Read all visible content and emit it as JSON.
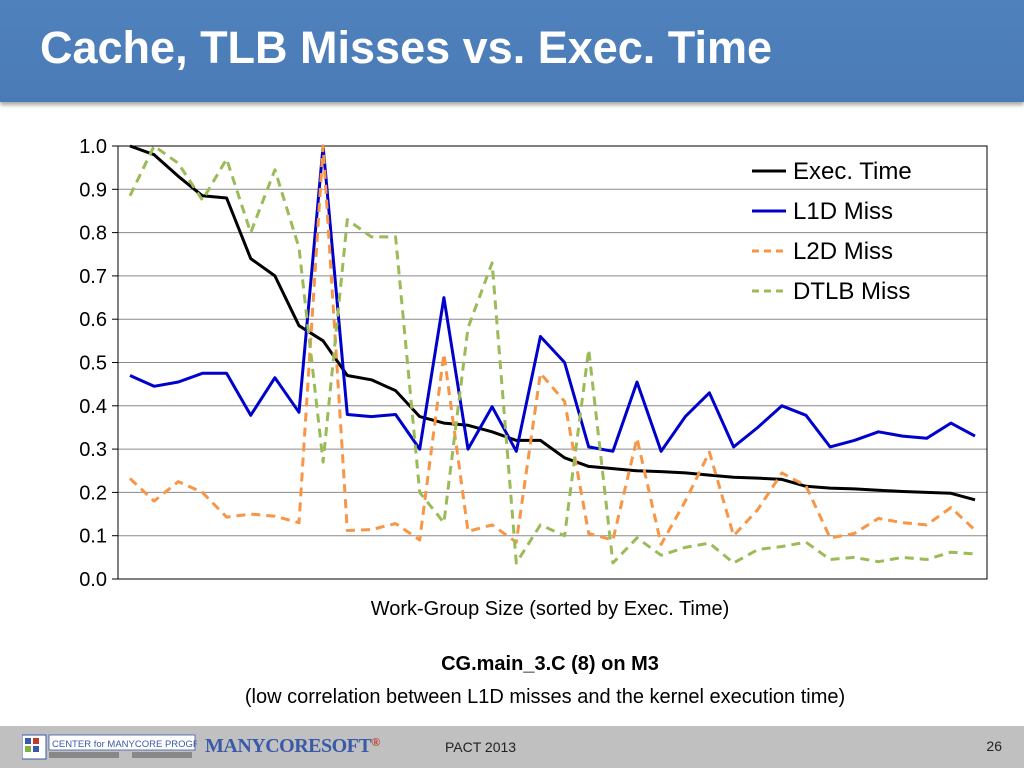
{
  "slide": {
    "title": "Cache, TLB Misses vs. Exec. Time",
    "xlabel": "Work-Group Size (sorted by Exec. Time)",
    "subtitle": "CG.main_3.C (8) on M3",
    "caption": "(low correlation between L1D misses and the kernel execution time)"
  },
  "footer": {
    "center_text": "PACT 2013",
    "page_number": "26",
    "logo_cmp_text": "CENTER for MANYCORE PROGRAMMING",
    "logo_mcs_text": "MANYCORESOFT",
    "logo_mcs_mark": "®"
  },
  "chart_data": {
    "type": "line",
    "title": "",
    "xlabel": "Work-Group Size (sorted by Exec. Time)",
    "ylabel": "",
    "ylim": [
      0,
      1.0
    ],
    "yticks": [
      "0.0",
      "0.1",
      "0.2",
      "0.3",
      "0.4",
      "0.5",
      "0.6",
      "0.7",
      "0.8",
      "0.9",
      "1.0"
    ],
    "grid": "horizontal",
    "legend": "top-right",
    "x": [
      1,
      2,
      3,
      4,
      5,
      6,
      7,
      8,
      9,
      10,
      11,
      12,
      13,
      14,
      15,
      16,
      17,
      18,
      19,
      20,
      21,
      22,
      23,
      24,
      25,
      26,
      27,
      28,
      29,
      30,
      31,
      32,
      33,
      34,
      35,
      36
    ],
    "series": [
      {
        "name": "Exec. Time",
        "color": "#000000",
        "dash": "solid",
        "values": [
          1.0,
          0.98,
          0.93,
          0.885,
          0.88,
          0.74,
          0.7,
          0.585,
          0.55,
          0.47,
          0.46,
          0.435,
          0.375,
          0.36,
          0.355,
          0.34,
          0.32,
          0.32,
          0.28,
          0.26,
          0.255,
          0.25,
          0.248,
          0.245,
          0.24,
          0.235,
          0.233,
          0.23,
          0.214,
          0.21,
          0.208,
          0.205,
          0.202,
          0.2,
          0.198,
          0.183
        ]
      },
      {
        "name": "L1D Miss",
        "color": "#0000cc",
        "dash": "solid",
        "values": [
          0.47,
          0.445,
          0.455,
          0.475,
          0.475,
          0.378,
          0.465,
          0.385,
          1.0,
          0.38,
          0.375,
          0.38,
          0.3,
          0.65,
          0.3,
          0.398,
          0.295,
          0.56,
          0.5,
          0.305,
          0.295,
          0.455,
          0.295,
          0.375,
          0.43,
          0.305,
          0.35,
          0.4,
          0.378,
          0.305,
          0.32,
          0.34,
          0.33,
          0.325,
          0.36,
          0.33
        ]
      },
      {
        "name": "L2D Miss",
        "color": "#f79646",
        "dash": "dashed",
        "values": [
          0.232,
          0.18,
          0.225,
          0.2,
          0.143,
          0.15,
          0.145,
          0.13,
          1.0,
          0.112,
          0.114,
          0.128,
          0.09,
          0.52,
          0.11,
          0.125,
          0.085,
          0.475,
          0.41,
          0.105,
          0.09,
          0.325,
          0.08,
          0.18,
          0.293,
          0.1,
          0.16,
          0.245,
          0.215,
          0.095,
          0.105,
          0.14,
          0.13,
          0.125,
          0.165,
          0.113
        ]
      },
      {
        "name": "DTLB Miss",
        "color": "#9bbb59",
        "dash": "dashed",
        "values": [
          0.885,
          1.0,
          0.96,
          0.875,
          0.97,
          0.8,
          0.945,
          0.765,
          0.27,
          0.83,
          0.79,
          0.79,
          0.2,
          0.13,
          0.58,
          0.73,
          0.037,
          0.125,
          0.1,
          0.53,
          0.037,
          0.095,
          0.055,
          0.073,
          0.083,
          0.037,
          0.068,
          0.075,
          0.085,
          0.045,
          0.05,
          0.04,
          0.05,
          0.045,
          0.062,
          0.058
        ]
      }
    ]
  }
}
